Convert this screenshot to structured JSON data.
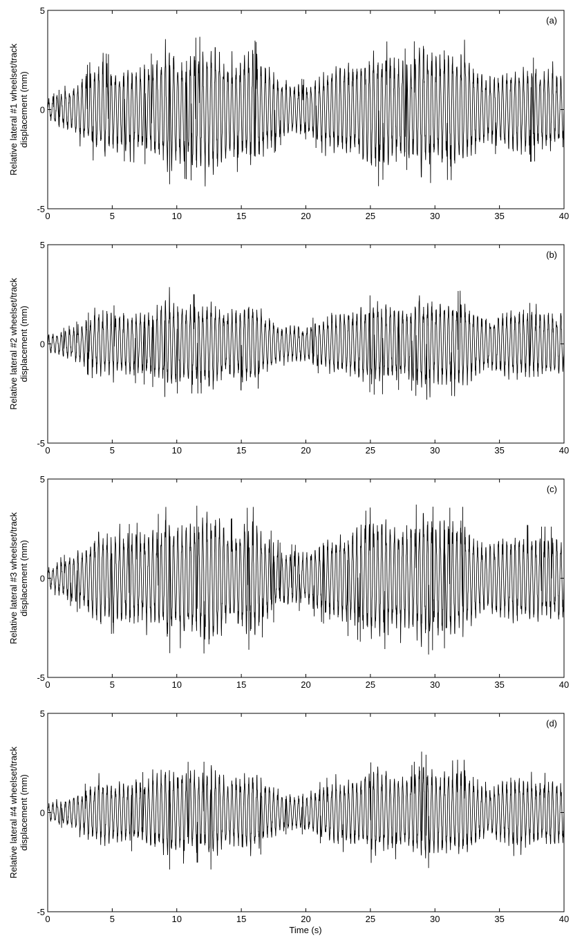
{
  "chart_data": [
    {
      "type": "line",
      "panel_label": "(a)",
      "ylabel_line1": "Relative lateral #1 wheelset/track",
      "ylabel_line2": "displacement (mm)",
      "xlabel": "",
      "xlim": [
        0,
        40
      ],
      "ylim": [
        -5,
        5
      ],
      "xticks": [
        0,
        5,
        10,
        15,
        20,
        25,
        30,
        35,
        40
      ],
      "yticks": [
        -5,
        0,
        5
      ],
      "series": [
        {
          "x": [
            0,
            2,
            4,
            6,
            8,
            9.5,
            10,
            12,
            12.7,
            14,
            15.8,
            18,
            20,
            22,
            24,
            25.7,
            26,
            28,
            29,
            30,
            32.2,
            34,
            36,
            38,
            40
          ],
          "envelope": [
            0.6,
            1.5,
            2.9,
            2.6,
            2.8,
            3.8,
            3.4,
            3.7,
            4.3,
            2.8,
            3.7,
            1.8,
            1.5,
            2.6,
            3.0,
            3.9,
            3.5,
            3.0,
            4.1,
            3.5,
            3.6,
            2.0,
            2.7,
            2.6,
            2.3
          ]
        }
      ]
    },
    {
      "type": "line",
      "panel_label": "(b)",
      "ylabel_line1": "Relative lateral #2 wheelset/track",
      "ylabel_line2": "displacement (mm)",
      "xlabel": "",
      "xlim": [
        0,
        40
      ],
      "ylim": [
        -5,
        5
      ],
      "xticks": [
        0,
        5,
        10,
        15,
        20,
        25,
        30,
        35,
        40
      ],
      "yticks": [
        -5,
        0,
        5
      ],
      "series": [
        {
          "x": [
            0,
            2,
            4,
            6,
            8,
            9.5,
            10,
            12,
            12.7,
            14,
            15.8,
            18,
            20,
            22,
            24,
            25.7,
            26,
            28,
            29,
            30,
            32.2,
            34,
            36,
            38,
            40
          ],
          "envelope": [
            0.5,
            1.0,
            2.0,
            1.9,
            2.1,
            2.9,
            2.5,
            2.5,
            2.8,
            2.0,
            2.6,
            1.1,
            1.1,
            1.9,
            2.1,
            2.7,
            2.5,
            2.2,
            3.0,
            2.5,
            2.7,
            1.5,
            2.2,
            2.0,
            1.9
          ]
        }
      ]
    },
    {
      "type": "line",
      "panel_label": "(c)",
      "ylabel_line1": "Relative lateral #3 wheelset/track",
      "ylabel_line2": "displacement (mm)",
      "xlabel": "",
      "xlim": [
        0,
        40
      ],
      "ylim": [
        -5,
        5
      ],
      "xticks": [
        0,
        5,
        10,
        15,
        20,
        25,
        30,
        35,
        40
      ],
      "yticks": [
        -5,
        0,
        5
      ],
      "series": [
        {
          "x": [
            0,
            2,
            4,
            6,
            8,
            9.5,
            10,
            12,
            12.7,
            14,
            15.8,
            18,
            20,
            22,
            24,
            25.7,
            26,
            28,
            29,
            30,
            32.2,
            34,
            36,
            38,
            40
          ],
          "envelope": [
            0.6,
            1.5,
            2.9,
            2.7,
            2.9,
            3.8,
            3.5,
            3.7,
            4.3,
            2.9,
            3.7,
            1.8,
            1.6,
            2.6,
            3.1,
            3.9,
            3.6,
            3.1,
            4.2,
            3.5,
            3.6,
            2.0,
            2.8,
            2.6,
            2.6
          ]
        }
      ]
    },
    {
      "type": "line",
      "panel_label": "(d)",
      "ylabel_line1": "Relative lateral #4 wheelset/track",
      "ylabel_line2": "displacement (mm)",
      "xlabel": "Time (s)",
      "xlim": [
        0,
        40
      ],
      "ylim": [
        -5,
        5
      ],
      "xticks": [
        0,
        5,
        10,
        15,
        20,
        25,
        30,
        35,
        40
      ],
      "yticks": [
        -5,
        0,
        5
      ],
      "series": [
        {
          "x": [
            0,
            2,
            4,
            6,
            8,
            9.5,
            10,
            12,
            12.7,
            14,
            15.8,
            18,
            20,
            22,
            24,
            25.7,
            26,
            28,
            29,
            30,
            32.2,
            34,
            36,
            38,
            40
          ],
          "envelope": [
            0.5,
            1.0,
            2.0,
            1.9,
            2.1,
            2.9,
            2.6,
            2.5,
            2.9,
            2.0,
            2.6,
            1.1,
            1.1,
            1.9,
            2.1,
            2.8,
            2.5,
            2.2,
            3.1,
            2.5,
            2.7,
            1.5,
            2.2,
            2.0,
            2.0
          ]
        }
      ]
    }
  ]
}
